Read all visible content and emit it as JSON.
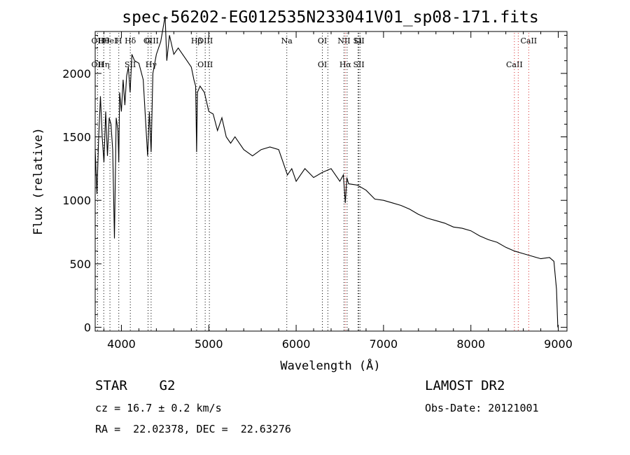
{
  "chart_data": {
    "type": "line",
    "title": "spec-56202-EG012535N233041V01_sp08-171.fits",
    "xlabel": "Wavelength (Å)",
    "ylabel": "Flux (relative)",
    "xlim": [
      3700,
      9100
    ],
    "ylim": [
      -30,
      2330
    ],
    "xticks": [
      4000,
      5000,
      6000,
      7000,
      8000,
      9000
    ],
    "yticks": [
      0,
      500,
      1000,
      1500,
      2000
    ],
    "grid": false,
    "series": [
      {
        "x": [
          3700,
          3720,
          3740,
          3760,
          3780,
          3800,
          3820,
          3840,
          3860,
          3880,
          3900,
          3920,
          3940,
          3960,
          3970,
          3980,
          4000,
          4020,
          4040,
          4060,
          4080,
          4100,
          4120,
          4150,
          4200,
          4250,
          4300,
          4320,
          4340,
          4360,
          4400,
          4450,
          4500,
          4520,
          4550,
          4600,
          4650,
          4700,
          4750,
          4800,
          4830,
          4850,
          4861,
          4870,
          4900,
          4950,
          5000,
          5050,
          5100,
          5150,
          5200,
          5250,
          5300,
          5400,
          5500,
          5600,
          5700,
          5800,
          5850,
          5900,
          5950,
          6000,
          6050,
          6100,
          6200,
          6300,
          6400,
          6500,
          6540,
          6563,
          6580,
          6600,
          6700,
          6800,
          6900,
          7000,
          7100,
          7200,
          7300,
          7400,
          7500,
          7600,
          7700,
          7800,
          7900,
          8000,
          8100,
          8200,
          8300,
          8400,
          8500,
          8600,
          8700,
          8800,
          8900,
          8950,
          8980,
          8995
        ],
        "y": [
          1400,
          1050,
          1500,
          1820,
          1500,
          1300,
          1700,
          1350,
          1650,
          1600,
          1400,
          700,
          1650,
          1550,
          1300,
          1850,
          1700,
          1950,
          1750,
          1980,
          2050,
          1850,
          2150,
          2100,
          2080,
          1950,
          1350,
          1700,
          1380,
          2000,
          2150,
          2250,
          2450,
          2100,
          2300,
          2150,
          2200,
          2150,
          2100,
          2050,
          1950,
          1900,
          1380,
          1850,
          1900,
          1850,
          1700,
          1680,
          1550,
          1650,
          1500,
          1450,
          1500,
          1400,
          1350,
          1400,
          1420,
          1400,
          1300,
          1200,
          1250,
          1150,
          1200,
          1250,
          1180,
          1220,
          1250,
          1150,
          1200,
          980,
          1180,
          1130,
          1120,
          1080,
          1010,
          1000,
          980,
          960,
          930,
          890,
          860,
          840,
          820,
          790,
          780,
          760,
          720,
          690,
          670,
          630,
          600,
          580,
          560,
          540,
          550,
          520,
          300,
          0
        ]
      }
    ],
    "lines": [
      {
        "x": 3727,
        "top": "OII",
        "bottom": "OII",
        "color": "#000000"
      },
      {
        "x": 3798,
        "top": "Hθ",
        "bottom": "Hη",
        "color": "#000000"
      },
      {
        "x": 3869,
        "top": "HeI",
        "bottom": "",
        "color": "#000000"
      },
      {
        "x": 3970,
        "top": "H",
        "bottom": "",
        "color": "#000000"
      },
      {
        "x": 4102,
        "top": "Hδ",
        "bottom": "SII",
        "color": "#000000"
      },
      {
        "x": 4305,
        "top": "G",
        "bottom": "",
        "color": "#000000"
      },
      {
        "x": 4340,
        "top": "OIII",
        "bottom": "Hγ",
        "color": "#000000"
      },
      {
        "x": 4861,
        "top": "Hβ",
        "bottom": "",
        "color": "#000000"
      },
      {
        "x": 4959,
        "top": "OIII",
        "bottom": "OIII",
        "color": "#000000"
      },
      {
        "x": 5007,
        "top": "",
        "bottom": "",
        "color": "#000000"
      },
      {
        "x": 5893,
        "top": "Na",
        "bottom": "",
        "color": "#000000"
      },
      {
        "x": 6300,
        "top": "OI",
        "bottom": "OI",
        "color": "#000000"
      },
      {
        "x": 6363,
        "top": "",
        "bottom": "",
        "color": "#000000"
      },
      {
        "x": 6548,
        "top": "NII",
        "bottom": "",
        "color": "#000000"
      },
      {
        "x": 6563,
        "top": "",
        "bottom": "Hα",
        "color": "#d62728"
      },
      {
        "x": 6583,
        "top": "",
        "bottom": "",
        "color": "#000000"
      },
      {
        "x": 6708,
        "top": "Li",
        "bottom": "",
        "color": "#000000"
      },
      {
        "x": 6717,
        "top": "SII",
        "bottom": "SII",
        "color": "#000000"
      },
      {
        "x": 6731,
        "top": "",
        "bottom": "",
        "color": "#000000"
      },
      {
        "x": 8498,
        "top": "",
        "bottom": "CaII",
        "color": "#d62728"
      },
      {
        "x": 8542,
        "top": "",
        "bottom": "",
        "color": "#d62728"
      },
      {
        "x": 8662,
        "top": "CaII",
        "bottom": "",
        "color": "#d62728"
      }
    ]
  },
  "info": {
    "object": "STAR    G2",
    "survey": "LAMOST DR2",
    "cz": "cz = 16.7 ± 0.2 km/s",
    "obsdate": "Obs-Date: 20121001",
    "radec": "RA =  22.02378, DEC =  22.63276"
  }
}
